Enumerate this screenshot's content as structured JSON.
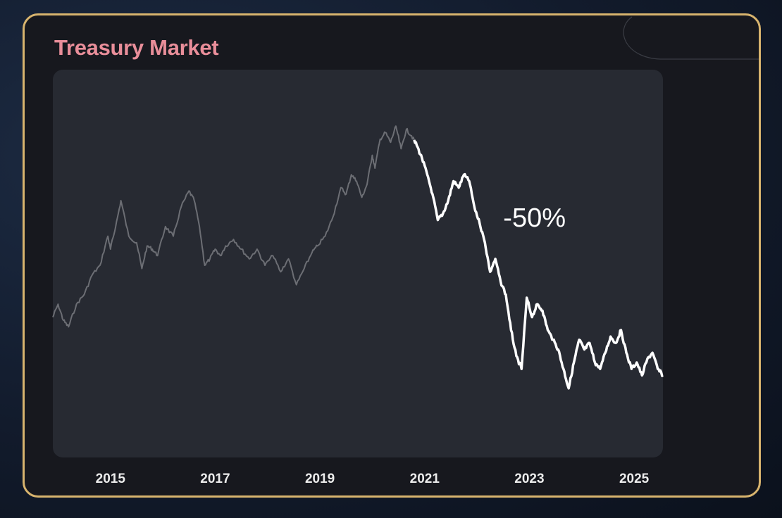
{
  "card": {
    "title": "Treasury Market"
  },
  "colors": {
    "border": "#d8b46e",
    "title": "#e98e9a",
    "plot_bg": "#272a32",
    "line_past": "#6c6e74",
    "line_highlight": "#ffffff"
  },
  "chart_data": {
    "type": "line",
    "title": "Treasury Market",
    "xlabel": "",
    "ylabel": "",
    "xlim": [
      2013.9,
      2025.55
    ],
    "ylim": [
      0,
      100
    ],
    "grid": false,
    "x_ticks": [
      2015,
      2017,
      2019,
      2021,
      2023,
      2025
    ],
    "x_tick_labels": [
      "2015",
      "2017",
      "2019",
      "2021",
      "2023",
      "2025"
    ],
    "highlight_from": 2020.8,
    "annotations": [
      {
        "text": "-50%",
        "x": 2022.5,
        "y": 62
      }
    ],
    "series": [
      {
        "x": [
          2013.9,
          2014.0,
          2014.1,
          2014.2,
          2014.35,
          2014.5,
          2014.65,
          2014.8,
          2014.95,
          2015.0,
          2015.1,
          2015.2,
          2015.35,
          2015.5,
          2015.6,
          2015.7,
          2015.8,
          2015.9,
          2016.05,
          2016.2,
          2016.35,
          2016.5,
          2016.6,
          2016.7,
          2016.8,
          2016.9,
          2017.0,
          2017.1,
          2017.2,
          2017.35,
          2017.5,
          2017.65,
          2017.8,
          2017.95,
          2018.1,
          2018.25,
          2018.4,
          2018.55,
          2018.7,
          2018.85,
          2018.95,
          2019.1,
          2019.25,
          2019.4,
          2019.5,
          2019.6,
          2019.7,
          2019.8,
          2019.9,
          2020.0,
          2020.05,
          2020.15,
          2020.25,
          2020.35,
          2020.45,
          2020.55,
          2020.65,
          2020.75,
          2020.85,
          2020.95,
          2021.05,
          2021.15,
          2021.25,
          2021.35,
          2021.45,
          2021.55,
          2021.65,
          2021.75,
          2021.85,
          2021.95,
          2022.05,
          2022.15,
          2022.25,
          2022.35,
          2022.45,
          2022.55,
          2022.65,
          2022.75,
          2022.85,
          2022.95,
          2023.05,
          2023.15,
          2023.25,
          2023.35,
          2023.45,
          2023.55,
          2023.65,
          2023.75,
          2023.85,
          2023.95,
          2024.05,
          2024.15,
          2024.25,
          2024.35,
          2024.45,
          2024.55,
          2024.65,
          2024.75,
          2024.85,
          2024.95,
          2025.05,
          2025.15,
          2025.25,
          2025.35,
          2025.45,
          2025.55
        ],
        "y": [
          34,
          38,
          33,
          31,
          38,
          41,
          47,
          50,
          59,
          55,
          62,
          70,
          59,
          57,
          49,
          56,
          55,
          53,
          62,
          59,
          68,
          73,
          70,
          62,
          50,
          52,
          55,
          53,
          56,
          58,
          55,
          52,
          55,
          50,
          53,
          48,
          52,
          44,
          49,
          54,
          56,
          59,
          65,
          74,
          72,
          78,
          76,
          71,
          75,
          84,
          80,
          89,
          91,
          88,
          93,
          86,
          92,
          90,
          87,
          83,
          78,
          72,
          64,
          66,
          70,
          76,
          74,
          78,
          76,
          68,
          63,
          57,
          48,
          52,
          45,
          41,
          30,
          22,
          18,
          40,
          34,
          38,
          36,
          30,
          27,
          24,
          18,
          12,
          20,
          27,
          24,
          26,
          20,
          18,
          23,
          28,
          26,
          30,
          23,
          18,
          20,
          16,
          21,
          23,
          18,
          16
        ]
      }
    ]
  }
}
